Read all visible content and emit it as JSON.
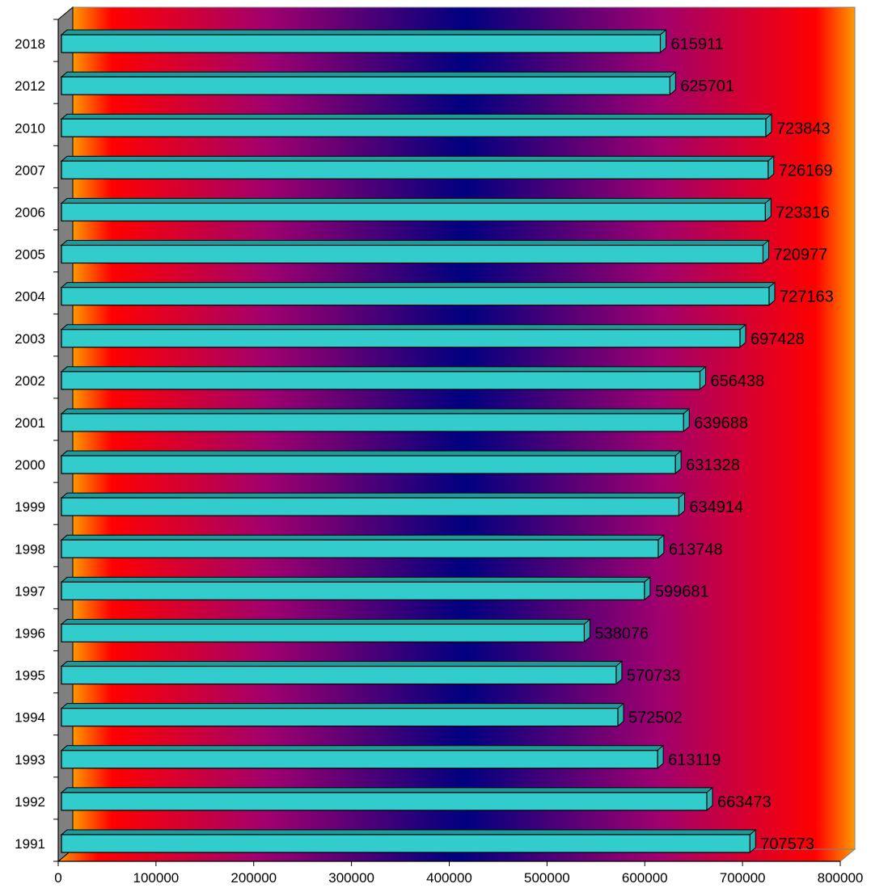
{
  "chart_data": {
    "type": "bar",
    "orientation": "horizontal",
    "style": "3d",
    "categories": [
      "2018",
      "2012",
      "2010",
      "2007",
      "2006",
      "2005",
      "2004",
      "2003",
      "2002",
      "2001",
      "2000",
      "1999",
      "1998",
      "1997",
      "1996",
      "1995",
      "1994",
      "1993",
      "1992",
      "1991"
    ],
    "values": [
      615911,
      625701,
      723843,
      726169,
      723316,
      720977,
      727163,
      697428,
      656438,
      639688,
      631328,
      634914,
      613748,
      599681,
      538076,
      570733,
      572502,
      613119,
      663473,
      707573
    ],
    "value_labels": [
      "615911",
      "625701",
      "723843",
      "726169",
      "723316",
      "720977",
      "727163",
      "697428",
      "656438",
      "639688",
      "631328",
      "634914",
      "613748",
      "599681",
      "538076",
      "570733",
      "572502",
      "613119",
      "663473",
      "707573"
    ],
    "x_ticks": [
      "0",
      "100000",
      "200000",
      "300000",
      "400000",
      "500000",
      "600000",
      "700000",
      "800000"
    ],
    "xlim": [
      0,
      800000
    ],
    "title": "",
    "xlabel": "",
    "ylabel": "",
    "legend": "none",
    "grid": false,
    "bar_color": "#33cccc",
    "background": "gradient orange-red-purple-navy-purple-red-orange"
  }
}
